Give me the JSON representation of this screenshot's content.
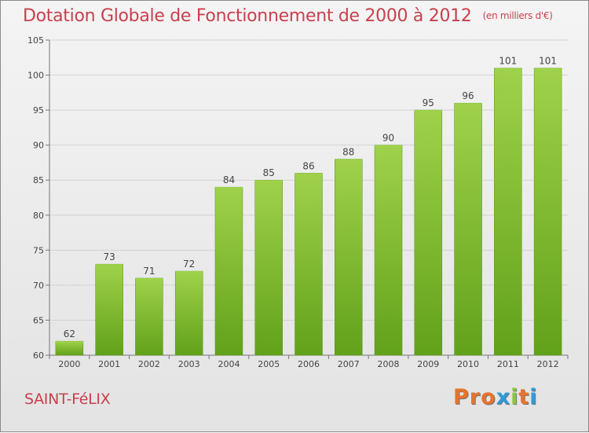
{
  "header": {
    "title": "Dotation Globale de Fonctionnement de 2000 à 2012",
    "subtitle": "(en milliers d'€)"
  },
  "footer": {
    "town": "SAINT-FéLIX",
    "logo": "Proxiti",
    "logo_colors": [
      "#e7732c",
      "#e7732c",
      "#e7732c",
      "#2f9ad6",
      "#8cc63f",
      "#e7732c",
      "#2f9ad6"
    ]
  },
  "chart_data": {
    "type": "bar",
    "categories": [
      "2000",
      "2001",
      "2002",
      "2003",
      "2004",
      "2005",
      "2006",
      "2007",
      "2008",
      "2009",
      "2010",
      "2011",
      "2012"
    ],
    "values": [
      62,
      73,
      71,
      72,
      84,
      85,
      86,
      88,
      90,
      95,
      96,
      101,
      101
    ],
    "ylim": [
      60,
      105
    ],
    "yticks": [
      60,
      65,
      70,
      75,
      80,
      85,
      90,
      95,
      100,
      105
    ],
    "grid": true,
    "bar_color": "#7fbb2a",
    "bar_highlight": "#9fd24a",
    "bar_shadow": "#5e9417"
  }
}
